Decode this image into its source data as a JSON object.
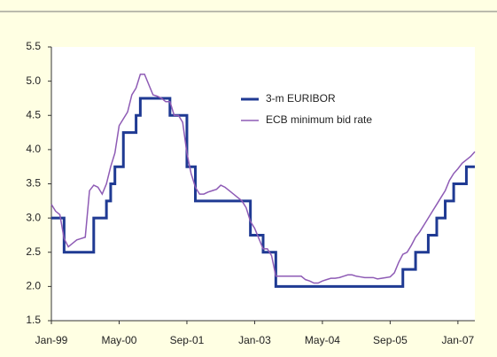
{
  "chart_data": {
    "type": "line",
    "xlim": [
      "1999-01",
      "2007-05"
    ],
    "xticks": [
      {
        "value": "1999-01",
        "label": "Jan-99"
      },
      {
        "value": "2000-05",
        "label": "May-00"
      },
      {
        "value": "2001-09",
        "label": "Sep-01"
      },
      {
        "value": "2003-01",
        "label": "Jan-03"
      },
      {
        "value": "2004-05",
        "label": "May-04"
      },
      {
        "value": "2005-09",
        "label": "Sep-05"
      },
      {
        "value": "2007-01",
        "label": "Jan-07"
      }
    ],
    "ylim": [
      1.5,
      5.5
    ],
    "yticks": [
      {
        "value": 1.5,
        "label": "1.5"
      },
      {
        "value": 2,
        "label": "2.0"
      },
      {
        "value": 2.5,
        "label": "2.5"
      },
      {
        "value": 3,
        "label": "3.0"
      },
      {
        "value": 3.5,
        "label": "3.5"
      },
      {
        "value": 4,
        "label": "4.0"
      },
      {
        "value": 4.5,
        "label": "4.5"
      },
      {
        "value": 5,
        "label": "5.0"
      },
      {
        "value": 5.5,
        "label": "5.5"
      }
    ],
    "series": [
      {
        "name": "3-m EURIBOR",
        "color": "#1f3a93",
        "step": true,
        "x": [
          "1999-01",
          "1999-04",
          "1999-11",
          "2000-02",
          "2000-03",
          "2000-04",
          "2000-06",
          "2000-09",
          "2000-10",
          "2001-05",
          "2001-09",
          "2001-11",
          "2002-12",
          "2003-03",
          "2003-06",
          "2005-12",
          "2006-03",
          "2006-06",
          "2006-08",
          "2006-10",
          "2006-12",
          "2007-03",
          "2007-05"
        ],
        "values": [
          3.0,
          2.5,
          3.0,
          3.25,
          3.5,
          3.75,
          4.25,
          4.5,
          4.75,
          4.5,
          3.75,
          3.25,
          2.75,
          2.5,
          2.0,
          2.25,
          2.5,
          2.75,
          3.0,
          3.25,
          3.5,
          3.75,
          3.75
        ]
      },
      {
        "name": "ECB minimum bid rate",
        "color": "#8e5bb5",
        "step": false,
        "x": [
          "1999-01",
          "1999-02",
          "1999-03",
          "1999-04",
          "1999-05",
          "1999-06",
          "1999-07",
          "1999-08",
          "1999-09",
          "1999-10",
          "1999-11",
          "1999-12",
          "2000-01",
          "2000-02",
          "2000-03",
          "2000-04",
          "2000-05",
          "2000-06",
          "2000-07",
          "2000-08",
          "2000-09",
          "2000-10",
          "2000-11",
          "2000-12",
          "2001-01",
          "2001-02",
          "2001-03",
          "2001-04",
          "2001-05",
          "2001-06",
          "2001-07",
          "2001-08",
          "2001-09",
          "2001-10",
          "2001-11",
          "2001-12",
          "2002-01",
          "2002-02",
          "2002-03",
          "2002-04",
          "2002-05",
          "2002-06",
          "2002-07",
          "2002-08",
          "2002-09",
          "2002-10",
          "2002-11",
          "2002-12",
          "2003-01",
          "2003-02",
          "2003-03",
          "2003-04",
          "2003-05",
          "2003-06",
          "2003-07",
          "2003-08",
          "2003-09",
          "2003-10",
          "2003-11",
          "2003-12",
          "2004-01",
          "2004-02",
          "2004-03",
          "2004-04",
          "2004-05",
          "2004-06",
          "2004-07",
          "2004-08",
          "2004-09",
          "2004-10",
          "2004-11",
          "2004-12",
          "2005-01",
          "2005-02",
          "2005-03",
          "2005-04",
          "2005-05",
          "2005-06",
          "2005-07",
          "2005-08",
          "2005-09",
          "2005-10",
          "2005-11",
          "2005-12",
          "2006-01",
          "2006-02",
          "2006-03",
          "2006-04",
          "2006-05",
          "2006-06",
          "2006-07",
          "2006-08",
          "2006-09",
          "2006-10",
          "2006-11",
          "2006-12",
          "2007-01",
          "2007-02",
          "2007-03",
          "2007-04",
          "2007-05"
        ],
        "values": [
          3.2,
          3.1,
          3.05,
          2.7,
          2.58,
          2.63,
          2.68,
          2.7,
          2.72,
          3.4,
          3.48,
          3.45,
          3.35,
          3.5,
          3.75,
          3.95,
          4.35,
          4.45,
          4.55,
          4.8,
          4.9,
          5.1,
          5.1,
          4.95,
          4.8,
          4.78,
          4.75,
          4.7,
          4.7,
          4.5,
          4.5,
          4.4,
          3.95,
          3.65,
          3.45,
          3.35,
          3.35,
          3.38,
          3.4,
          3.42,
          3.48,
          3.45,
          3.4,
          3.35,
          3.3,
          3.25,
          3.15,
          2.95,
          2.85,
          2.7,
          2.55,
          2.55,
          2.45,
          2.15,
          2.15,
          2.15,
          2.15,
          2.15,
          2.15,
          2.15,
          2.1,
          2.08,
          2.05,
          2.05,
          2.08,
          2.1,
          2.12,
          2.12,
          2.13,
          2.15,
          2.17,
          2.17,
          2.15,
          2.14,
          2.13,
          2.13,
          2.13,
          2.11,
          2.12,
          2.13,
          2.14,
          2.2,
          2.35,
          2.47,
          2.5,
          2.6,
          2.72,
          2.8,
          2.9,
          3.0,
          3.1,
          3.2,
          3.3,
          3.4,
          3.55,
          3.65,
          3.72,
          3.8,
          3.85,
          3.9,
          3.97
        ]
      }
    ],
    "legend": "inside-top-center"
  }
}
